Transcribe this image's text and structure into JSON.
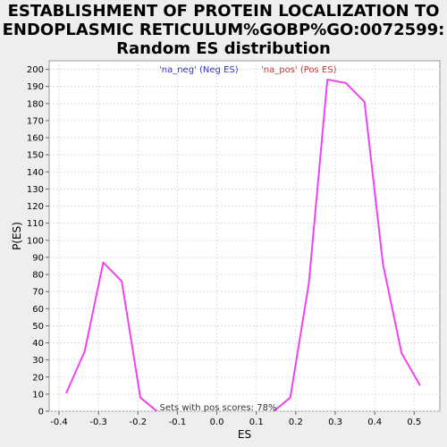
{
  "chart_data": {
    "type": "line",
    "title_lines": [
      "ESTABLISHMENT OF PROTEIN LOCALIZATION TO",
      "ENDOPLASMIC RETICULUM%GOBP%GO:0072599:",
      "Random ES distribution"
    ],
    "xlabel": "ES",
    "ylabel": "P(ES)",
    "xlim": [
      -0.425,
      0.565
    ],
    "ylim": [
      0,
      205
    ],
    "xticks": [
      -0.4,
      -0.3,
      -0.2,
      -0.1,
      0.0,
      0.1,
      0.2,
      0.3,
      0.4,
      0.5
    ],
    "xtick_labels": [
      "-0.4",
      "-0.3",
      "-0.2",
      "-0.1",
      "0.0",
      "0.1",
      "0.2",
      "0.3",
      "0.4",
      "0.5"
    ],
    "yticks": [
      0,
      10,
      20,
      30,
      40,
      50,
      60,
      70,
      80,
      90,
      100,
      110,
      120,
      130,
      140,
      150,
      160,
      170,
      180,
      190,
      200
    ],
    "grid": true,
    "series": [
      {
        "color": "#ee44ee",
        "x": [
          -0.382,
          -0.335,
          -0.288,
          -0.241,
          -0.194,
          -0.147,
          0.139,
          0.186,
          0.233,
          0.28,
          0.327,
          0.374,
          0.421,
          0.468,
          0.515
        ],
        "y": [
          10.5,
          35,
          87,
          76,
          8,
          -1,
          -1,
          8,
          75,
          194,
          192,
          181,
          86,
          34,
          15
        ]
      }
    ],
    "legend": [
      {
        "label": "'na_neg' (Neg ES)",
        "color": "#3333cc"
      },
      {
        "label": "'na_pos' (Pos ES)",
        "color": "#cc3333"
      }
    ],
    "legend_placement": "top-center",
    "annotation": "Sets with pos scores: 78%"
  }
}
